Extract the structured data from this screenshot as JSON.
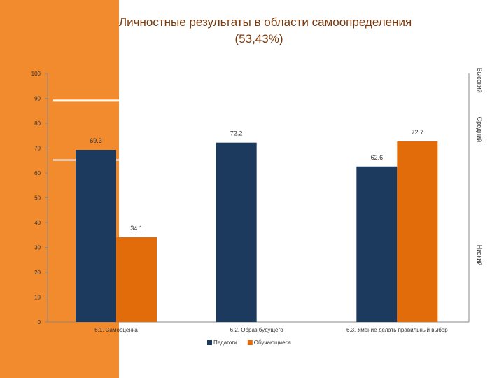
{
  "chart_data": {
    "type": "bar",
    "title": "Личностные результаты в области самоопределения",
    "subtitle": "(53,43%)",
    "categories": [
      "6.1. Самооценка",
      "6.2. Образ будущего",
      "6.3. Умение делать правильный выбор"
    ],
    "series": [
      {
        "name": "Педагоги",
        "color": "#1B3A5E",
        "values": [
          69.3,
          72.2,
          62.6
        ]
      },
      {
        "name": "Обучающиеся",
        "color": "#E36C0A",
        "values": [
          34.1,
          null,
          72.7
        ]
      }
    ],
    "data_labels": [
      [
        "69.3",
        "72.2",
        "62.6"
      ],
      [
        "34.1",
        "",
        "72.7"
      ]
    ],
    "ylim": [
      0,
      100
    ],
    "yticks": [
      0,
      10,
      20,
      30,
      40,
      50,
      60,
      70,
      80,
      90,
      100
    ],
    "level_bands": [
      {
        "label": "Высокий",
        "from": 90,
        "to": 100
      },
      {
        "label": "Средний",
        "from": 65,
        "to": 90
      },
      {
        "label": "Низкий",
        "from": 0,
        "to": 65
      }
    ],
    "level_lines": [
      89.2,
      65.2
    ],
    "legend": {
      "position": "bottom"
    },
    "grid": false
  }
}
